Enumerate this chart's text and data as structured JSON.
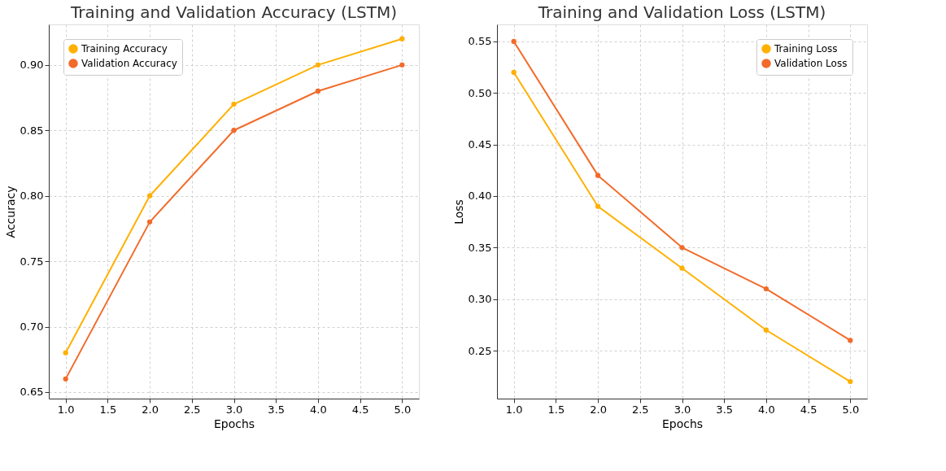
{
  "chart_data": [
    {
      "type": "line",
      "title": "Training and Validation Accuracy (LSTM)",
      "xlabel": "Epochs",
      "ylabel": "Accuracy",
      "x": [
        1,
        2,
        3,
        4,
        5
      ],
      "series": [
        {
          "name": "Training Accuracy",
          "color": "#ffb000",
          "values": [
            0.68,
            0.8,
            0.87,
            0.9,
            0.92
          ]
        },
        {
          "name": "Validation Accuracy",
          "color": "#f26b2a",
          "values": [
            0.66,
            0.78,
            0.85,
            0.88,
            0.9
          ]
        }
      ],
      "xlim": [
        0.8,
        5.2
      ],
      "ylim": [
        0.645,
        0.931
      ],
      "xticks": [
        {
          "value": 1,
          "label": "1.0"
        },
        1.5,
        {
          "value": 2,
          "label": "2.0"
        },
        2.5,
        {
          "value": 3,
          "label": "3.0"
        },
        3.5,
        {
          "value": 4,
          "label": "4.0"
        },
        4.5,
        {
          "value": 5,
          "label": "5.0"
        }
      ],
      "yticks": [
        0.65,
        {
          "value": 0.7,
          "label": "0.70"
        },
        0.75,
        {
          "value": 0.8,
          "label": "0.80"
        },
        0.85,
        {
          "value": 0.9,
          "label": "0.90"
        }
      ],
      "grid": true,
      "legend": "top left",
      "marker": "circle",
      "line_style": "solid"
    },
    {
      "type": "line",
      "title": "Training and Validation Loss (LSTM)",
      "xlabel": "Epochs",
      "ylabel": "Loss",
      "x": [
        1,
        2,
        3,
        4,
        5
      ],
      "series": [
        {
          "name": "Training Loss",
          "color": "#ffb000",
          "values": [
            0.52,
            0.39,
            0.33,
            0.27,
            0.22
          ]
        },
        {
          "name": "Validation Loss",
          "color": "#f26b2a",
          "values": [
            0.55,
            0.42,
            0.35,
            0.31,
            0.26
          ]
        }
      ],
      "xlim": [
        0.8,
        5.2
      ],
      "ylim": [
        0.2035,
        0.5665
      ],
      "xticks": [
        {
          "value": 1,
          "label": "1.0"
        },
        1.5,
        {
          "value": 2,
          "label": "2.0"
        },
        2.5,
        {
          "value": 3,
          "label": "3.0"
        },
        3.5,
        {
          "value": 4,
          "label": "4.0"
        },
        4.5,
        {
          "value": 5,
          "label": "5.0"
        }
      ],
      "yticks": [
        0.25,
        {
          "value": 0.3,
          "label": "0.30"
        },
        0.35,
        {
          "value": 0.4,
          "label": "0.40"
        },
        0.45,
        {
          "value": 0.5,
          "label": "0.50"
        },
        0.55
      ],
      "grid": true,
      "legend": "top right",
      "marker": "circle",
      "line_style": "solid"
    }
  ]
}
